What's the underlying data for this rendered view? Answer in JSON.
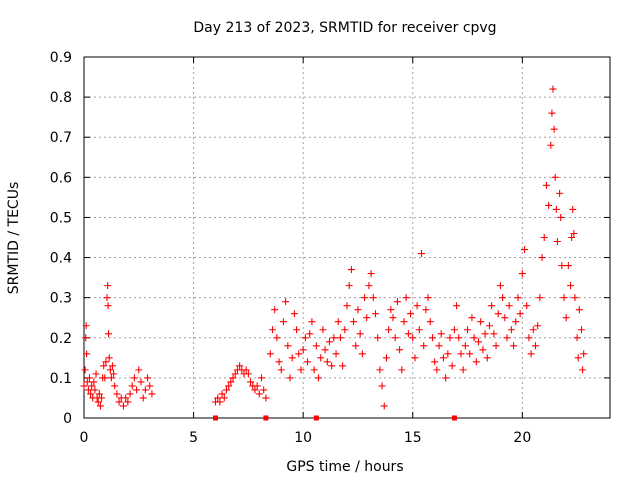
{
  "chart_data": {
    "type": "scatter",
    "title": "Day 213 of 2023, SRMTID for receiver cpvg",
    "xlabel": "GPS time / hours",
    "ylabel": "SRMTID / TECUs",
    "xlim": [
      0,
      24
    ],
    "ylim": [
      0,
      0.9
    ],
    "x_ticks": [
      0,
      5,
      10,
      15,
      20
    ],
    "y_ticks": [
      0,
      0.1,
      0.2,
      0.3,
      0.4,
      0.5,
      0.6,
      0.7,
      0.8,
      0.9
    ],
    "grid": true,
    "marker": "plus",
    "color": "#ff0000",
    "series": [
      {
        "name": "SRMTID",
        "points": [
          [
            0.0,
            0.08
          ],
          [
            0.05,
            0.12
          ],
          [
            0.08,
            0.2
          ],
          [
            0.1,
            0.23
          ],
          [
            0.12,
            0.16
          ],
          [
            0.15,
            0.09
          ],
          [
            0.2,
            0.07
          ],
          [
            0.25,
            0.1
          ],
          [
            0.3,
            0.06
          ],
          [
            0.35,
            0.08
          ],
          [
            0.4,
            0.05
          ],
          [
            0.45,
            0.09
          ],
          [
            0.5,
            0.07
          ],
          [
            0.55,
            0.11
          ],
          [
            0.6,
            0.05
          ],
          [
            0.65,
            0.04
          ],
          [
            0.7,
            0.06
          ],
          [
            0.75,
            0.03
          ],
          [
            0.8,
            0.05
          ],
          [
            0.85,
            0.1
          ],
          [
            0.9,
            0.13
          ],
          [
            0.95,
            0.1
          ],
          [
            1.0,
            0.14
          ],
          [
            1.05,
            0.3
          ],
          [
            1.08,
            0.33
          ],
          [
            1.1,
            0.28
          ],
          [
            1.12,
            0.21
          ],
          [
            1.15,
            0.15
          ],
          [
            1.2,
            0.12
          ],
          [
            1.25,
            0.1
          ],
          [
            1.3,
            0.13
          ],
          [
            1.35,
            0.11
          ],
          [
            1.4,
            0.08
          ],
          [
            1.5,
            0.06
          ],
          [
            1.6,
            0.04
          ],
          [
            1.7,
            0.05
          ],
          [
            1.8,
            0.03
          ],
          [
            1.9,
            0.05
          ],
          [
            2.0,
            0.04
          ],
          [
            2.1,
            0.06
          ],
          [
            2.2,
            0.08
          ],
          [
            2.3,
            0.1
          ],
          [
            2.4,
            0.07
          ],
          [
            2.5,
            0.12
          ],
          [
            2.6,
            0.09
          ],
          [
            2.7,
            0.05
          ],
          [
            2.8,
            0.07
          ],
          [
            2.9,
            0.1
          ],
          [
            3.0,
            0.08
          ],
          [
            3.1,
            0.06
          ],
          [
            6.0,
            0.04
          ],
          [
            6.1,
            0.05
          ],
          [
            6.2,
            0.04
          ],
          [
            6.3,
            0.06
          ],
          [
            6.4,
            0.05
          ],
          [
            6.5,
            0.07
          ],
          [
            6.6,
            0.08
          ],
          [
            6.7,
            0.09
          ],
          [
            6.8,
            0.1
          ],
          [
            6.9,
            0.11
          ],
          [
            7.0,
            0.12
          ],
          [
            7.1,
            0.13
          ],
          [
            7.2,
            0.12
          ],
          [
            7.3,
            0.11
          ],
          [
            7.4,
            0.12
          ],
          [
            7.5,
            0.11
          ],
          [
            7.6,
            0.09
          ],
          [
            7.7,
            0.08
          ],
          [
            7.8,
            0.07
          ],
          [
            7.9,
            0.08
          ],
          [
            8.0,
            0.06
          ],
          [
            8.1,
            0.1
          ],
          [
            8.2,
            0.07
          ],
          [
            8.3,
            0.05
          ],
          [
            8.5,
            0.16
          ],
          [
            8.6,
            0.22
          ],
          [
            8.7,
            0.27
          ],
          [
            8.8,
            0.2
          ],
          [
            8.9,
            0.14
          ],
          [
            9.0,
            0.12
          ],
          [
            9.1,
            0.24
          ],
          [
            9.2,
            0.29
          ],
          [
            9.3,
            0.18
          ],
          [
            9.4,
            0.1
          ],
          [
            9.5,
            0.15
          ],
          [
            9.6,
            0.26
          ],
          [
            9.7,
            0.22
          ],
          [
            9.8,
            0.16
          ],
          [
            9.9,
            0.12
          ],
          [
            10.0,
            0.17
          ],
          [
            10.1,
            0.2
          ],
          [
            10.2,
            0.14
          ],
          [
            10.3,
            0.21
          ],
          [
            10.4,
            0.24
          ],
          [
            10.5,
            0.12
          ],
          [
            10.6,
            0.18
          ],
          [
            10.7,
            0.1
          ],
          [
            10.8,
            0.15
          ],
          [
            10.9,
            0.22
          ],
          [
            11.0,
            0.17
          ],
          [
            11.1,
            0.14
          ],
          [
            11.2,
            0.19
          ],
          [
            11.3,
            0.13
          ],
          [
            11.4,
            0.2
          ],
          [
            11.5,
            0.16
          ],
          [
            11.6,
            0.24
          ],
          [
            11.7,
            0.2
          ],
          [
            11.8,
            0.13
          ],
          [
            11.9,
            0.22
          ],
          [
            12.0,
            0.28
          ],
          [
            12.1,
            0.33
          ],
          [
            12.2,
            0.37
          ],
          [
            12.3,
            0.24
          ],
          [
            12.4,
            0.18
          ],
          [
            12.5,
            0.27
          ],
          [
            12.6,
            0.21
          ],
          [
            12.7,
            0.16
          ],
          [
            12.8,
            0.3
          ],
          [
            12.9,
            0.25
          ],
          [
            13.0,
            0.33
          ],
          [
            13.1,
            0.36
          ],
          [
            13.2,
            0.3
          ],
          [
            13.3,
            0.26
          ],
          [
            13.4,
            0.2
          ],
          [
            13.5,
            0.12
          ],
          [
            13.6,
            0.08
          ],
          [
            13.7,
            0.03
          ],
          [
            13.8,
            0.15
          ],
          [
            13.9,
            0.22
          ],
          [
            14.0,
            0.27
          ],
          [
            14.1,
            0.25
          ],
          [
            14.2,
            0.2
          ],
          [
            14.3,
            0.29
          ],
          [
            14.4,
            0.17
          ],
          [
            14.5,
            0.12
          ],
          [
            14.6,
            0.24
          ],
          [
            14.7,
            0.3
          ],
          [
            14.8,
            0.21
          ],
          [
            14.9,
            0.26
          ],
          [
            15.0,
            0.2
          ],
          [
            15.1,
            0.15
          ],
          [
            15.2,
            0.28
          ],
          [
            15.3,
            0.22
          ],
          [
            15.4,
            0.41
          ],
          [
            15.5,
            0.18
          ],
          [
            15.6,
            0.27
          ],
          [
            15.7,
            0.3
          ],
          [
            15.8,
            0.24
          ],
          [
            15.9,
            0.2
          ],
          [
            16.0,
            0.14
          ],
          [
            16.1,
            0.12
          ],
          [
            16.2,
            0.18
          ],
          [
            16.3,
            0.21
          ],
          [
            16.4,
            0.15
          ],
          [
            16.5,
            0.1
          ],
          [
            16.6,
            0.16
          ],
          [
            16.7,
            0.2
          ],
          [
            16.8,
            0.13
          ],
          [
            16.9,
            0.22
          ],
          [
            17.0,
            0.28
          ],
          [
            17.1,
            0.2
          ],
          [
            17.2,
            0.16
          ],
          [
            17.3,
            0.12
          ],
          [
            17.4,
            0.18
          ],
          [
            17.5,
            0.22
          ],
          [
            17.6,
            0.16
          ],
          [
            17.7,
            0.25
          ],
          [
            17.8,
            0.2
          ],
          [
            17.9,
            0.14
          ],
          [
            18.0,
            0.19
          ],
          [
            18.1,
            0.24
          ],
          [
            18.2,
            0.17
          ],
          [
            18.3,
            0.21
          ],
          [
            18.4,
            0.15
          ],
          [
            18.5,
            0.23
          ],
          [
            18.6,
            0.28
          ],
          [
            18.7,
            0.21
          ],
          [
            18.8,
            0.18
          ],
          [
            18.9,
            0.26
          ],
          [
            19.0,
            0.33
          ],
          [
            19.1,
            0.3
          ],
          [
            19.2,
            0.25
          ],
          [
            19.3,
            0.2
          ],
          [
            19.4,
            0.28
          ],
          [
            19.5,
            0.22
          ],
          [
            19.6,
            0.18
          ],
          [
            19.7,
            0.24
          ],
          [
            19.8,
            0.3
          ],
          [
            19.9,
            0.26
          ],
          [
            20.0,
            0.36
          ],
          [
            20.1,
            0.42
          ],
          [
            20.2,
            0.28
          ],
          [
            20.3,
            0.2
          ],
          [
            20.4,
            0.16
          ],
          [
            20.5,
            0.22
          ],
          [
            20.6,
            0.18
          ],
          [
            20.7,
            0.23
          ],
          [
            20.8,
            0.3
          ],
          [
            20.9,
            0.4
          ],
          [
            21.0,
            0.45
          ],
          [
            21.1,
            0.58
          ],
          [
            21.2,
            0.53
          ],
          [
            21.3,
            0.68
          ],
          [
            21.35,
            0.76
          ],
          [
            21.4,
            0.82
          ],
          [
            21.45,
            0.72
          ],
          [
            21.5,
            0.6
          ],
          [
            21.55,
            0.52
          ],
          [
            21.6,
            0.44
          ],
          [
            21.7,
            0.56
          ],
          [
            21.75,
            0.5
          ],
          [
            21.8,
            0.38
          ],
          [
            21.9,
            0.3
          ],
          [
            22.0,
            0.25
          ],
          [
            22.1,
            0.38
          ],
          [
            22.2,
            0.33
          ],
          [
            22.25,
            0.45
          ],
          [
            22.3,
            0.52
          ],
          [
            22.35,
            0.46
          ],
          [
            22.4,
            0.3
          ],
          [
            22.5,
            0.2
          ],
          [
            22.55,
            0.15
          ],
          [
            22.6,
            0.27
          ],
          [
            22.7,
            0.22
          ],
          [
            22.75,
            0.12
          ],
          [
            22.8,
            0.16
          ]
        ]
      }
    ],
    "axis_markers": [
      6.0,
      8.3,
      10.6,
      16.9
    ]
  }
}
